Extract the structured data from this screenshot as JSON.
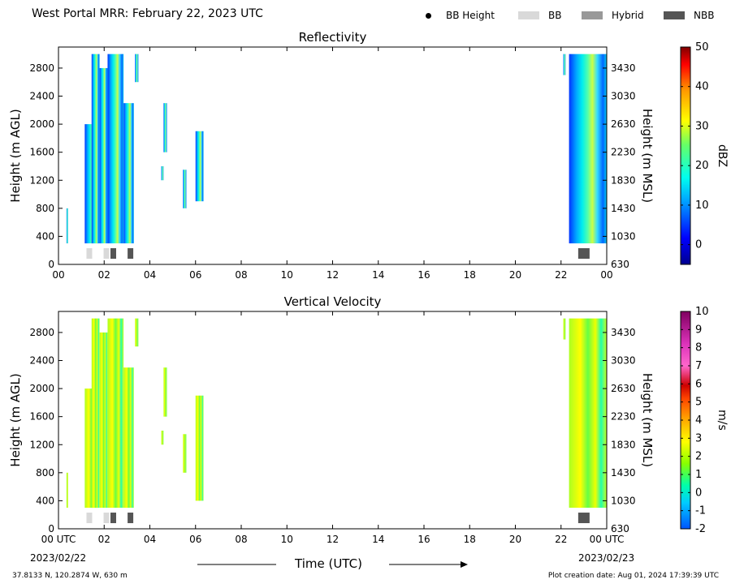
{
  "header": {
    "title": "West Portal MRR:  February 22, 2023 UTC",
    "legend": [
      {
        "label": "BB Height",
        "kind": "dot",
        "color": "#000000"
      },
      {
        "label": "BB",
        "kind": "swatch",
        "color": "#d9d9d9"
      },
      {
        "label": "Hybrid",
        "kind": "swatch",
        "color": "#999999"
      },
      {
        "label": "NBB",
        "kind": "swatch",
        "color": "#555555"
      }
    ]
  },
  "footer": {
    "location": "37.8133 N, 120.2874 W, 630 m",
    "created": "Plot creation date: Aug 01, 2024 17:39:39 UTC",
    "time_axis_label": "Time (UTC)",
    "start_date": "2023/02/22",
    "end_date": "2023/02/23"
  },
  "chart_data": [
    {
      "type": "heatmap",
      "title": "Reflectivity",
      "xlabel": "",
      "ylabel": "Height (m AGL)",
      "ylabel_right": "Height (m MSL)",
      "xlim": [
        0,
        24
      ],
      "ylim": [
        0,
        3100
      ],
      "x_ticks": [
        "00",
        "02",
        "04",
        "06",
        "08",
        "10",
        "12",
        "14",
        "16",
        "18",
        "20",
        "22",
        "00"
      ],
      "y_ticks": [
        0,
        400,
        800,
        1200,
        1600,
        2000,
        2400,
        2800
      ],
      "y_ticks_right": [
        "630",
        "1030",
        "1430",
        "1830",
        "2230",
        "2630",
        "3030",
        "3430"
      ],
      "colorbar": {
        "label": "dBZ",
        "min": -5,
        "max": 50,
        "ticks": [
          0,
          10,
          20,
          30,
          40,
          50
        ]
      },
      "echo_segments": [
        {
          "x0": 0.35,
          "x1": 0.42,
          "y0": 300,
          "y1": 800
        },
        {
          "x0": 1.15,
          "x1": 1.75,
          "y0": 300,
          "y1": 2000
        },
        {
          "x0": 1.45,
          "x1": 1.8,
          "y0": 300,
          "y1": 3000
        },
        {
          "x0": 1.8,
          "x1": 2.15,
          "y0": 300,
          "y1": 2800
        },
        {
          "x0": 2.15,
          "x1": 2.85,
          "y0": 300,
          "y1": 3000
        },
        {
          "x0": 2.85,
          "x1": 3.3,
          "y0": 300,
          "y1": 2300
        },
        {
          "x0": 3.35,
          "x1": 3.5,
          "y0": 2600,
          "y1": 3000
        },
        {
          "x0": 4.6,
          "x1": 4.75,
          "y0": 1600,
          "y1": 2300
        },
        {
          "x0": 4.5,
          "x1": 4.6,
          "y0": 1200,
          "y1": 1400
        },
        {
          "x0": 5.45,
          "x1": 5.6,
          "y0": 800,
          "y1": 1350
        },
        {
          "x0": 6.0,
          "x1": 6.35,
          "y0": 900,
          "y1": 1900
        },
        {
          "x0": 22.1,
          "x1": 22.2,
          "y0": 2700,
          "y1": 3000
        },
        {
          "x0": 22.35,
          "x1": 24.0,
          "y0": 300,
          "y1": 3000
        }
      ],
      "bright_band_markers": [
        {
          "time": 1.35,
          "type": "BB"
        },
        {
          "time": 2.1,
          "type": "BB"
        },
        {
          "time": 2.4,
          "type": "NBB"
        },
        {
          "time": 3.15,
          "type": "NBB"
        },
        {
          "time": 23.0,
          "type": "NBB"
        }
      ]
    },
    {
      "type": "heatmap",
      "title": "Vertical Velocity",
      "xlabel": "",
      "ylabel": "Height (m AGL)",
      "ylabel_right": "Height (m MSL)",
      "xlim": [
        0,
        24
      ],
      "ylim": [
        0,
        3100
      ],
      "x_ticks": [
        "00 UTC",
        "02",
        "04",
        "06",
        "08",
        "10",
        "12",
        "14",
        "16",
        "18",
        "20",
        "22",
        "00 UTC"
      ],
      "y_ticks": [
        0,
        400,
        800,
        1200,
        1600,
        2000,
        2400,
        2800
      ],
      "y_ticks_right": [
        "630",
        "1030",
        "1430",
        "1830",
        "2230",
        "2630",
        "3030",
        "3430"
      ],
      "colorbar": {
        "label": "m/s",
        "min": -2,
        "max": 10,
        "ticks": [
          -2,
          -1,
          0,
          1,
          2,
          3,
          4,
          5,
          6,
          7,
          8,
          9,
          10
        ]
      },
      "echo_segments": [
        {
          "x0": 0.35,
          "x1": 0.42,
          "y0": 300,
          "y1": 800
        },
        {
          "x0": 1.15,
          "x1": 1.75,
          "y0": 300,
          "y1": 2000
        },
        {
          "x0": 1.45,
          "x1": 1.8,
          "y0": 300,
          "y1": 3000
        },
        {
          "x0": 1.8,
          "x1": 2.15,
          "y0": 300,
          "y1": 2800
        },
        {
          "x0": 2.15,
          "x1": 2.85,
          "y0": 300,
          "y1": 3000
        },
        {
          "x0": 2.85,
          "x1": 3.3,
          "y0": 300,
          "y1": 2300
        },
        {
          "x0": 3.35,
          "x1": 3.5,
          "y0": 2600,
          "y1": 3000
        },
        {
          "x0": 4.6,
          "x1": 4.75,
          "y0": 1600,
          "y1": 2300
        },
        {
          "x0": 4.5,
          "x1": 4.6,
          "y0": 1200,
          "y1": 1400
        },
        {
          "x0": 5.45,
          "x1": 5.6,
          "y0": 800,
          "y1": 1350
        },
        {
          "x0": 6.0,
          "x1": 6.35,
          "y0": 400,
          "y1": 1900
        },
        {
          "x0": 22.1,
          "x1": 22.2,
          "y0": 2700,
          "y1": 3000
        },
        {
          "x0": 22.35,
          "x1": 24.0,
          "y0": 300,
          "y1": 3000
        }
      ],
      "bright_band_markers": [
        {
          "time": 1.35,
          "type": "BB"
        },
        {
          "time": 2.1,
          "type": "BB"
        },
        {
          "time": 2.4,
          "type": "NBB"
        },
        {
          "time": 3.15,
          "type": "NBB"
        },
        {
          "time": 23.0,
          "type": "NBB"
        }
      ]
    }
  ]
}
